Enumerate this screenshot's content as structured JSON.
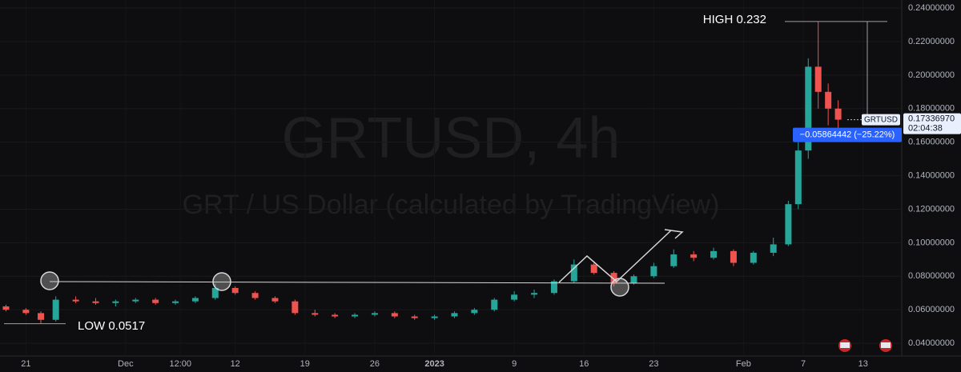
{
  "chart_data": {
    "type": "candlestick",
    "watermark": {
      "symbol": "GRTUSD, 4h",
      "description": "GRT / US Dollar (calculated by TradingView)"
    },
    "x": [
      -2,
      0,
      1.5,
      3,
      5,
      7,
      9,
      11,
      13,
      15,
      17,
      19,
      21,
      23,
      25,
      27,
      29,
      31,
      33,
      35,
      37,
      39,
      41,
      43,
      45,
      47,
      49,
      51,
      53,
      55,
      57,
      59,
      61,
      63,
      65,
      67,
      69,
      71,
      73,
      75,
      76.5,
      77.5,
      78.5,
      79.5,
      80.5,
      81.5
    ],
    "open": [
      0.062,
      0.06,
      0.058,
      0.054,
      0.066,
      0.065,
      0.064,
      0.065,
      0.066,
      0.064,
      0.065,
      0.067,
      0.073,
      0.07,
      0.067,
      0.065,
      0.058,
      0.057,
      0.056,
      0.057,
      0.058,
      0.056,
      0.055,
      0.056,
      0.058,
      0.06,
      0.066,
      0.069,
      0.07,
      0.077,
      0.087,
      0.082,
      0.076,
      0.08,
      0.086,
      0.093,
      0.091,
      0.095,
      0.088,
      0.094,
      0.099,
      0.123,
      0.155,
      0.205,
      0.19,
      0.18
    ],
    "high": [
      0.063,
      0.061,
      0.059,
      0.068,
      0.068,
      0.067,
      0.066,
      0.067,
      0.067,
      0.066,
      0.068,
      0.0755,
      0.074,
      0.071,
      0.068,
      0.066,
      0.06,
      0.058,
      0.058,
      0.059,
      0.059,
      0.057,
      0.057,
      0.059,
      0.061,
      0.067,
      0.071,
      0.072,
      0.078,
      0.09,
      0.089,
      0.083,
      0.081,
      0.088,
      0.096,
      0.095,
      0.097,
      0.096,
      0.095,
      0.103,
      0.125,
      0.16,
      0.21,
      0.232,
      0.195,
      0.185
    ],
    "low": [
      0.059,
      0.057,
      0.0517,
      0.053,
      0.064,
      0.063,
      0.062,
      0.064,
      0.063,
      0.063,
      0.064,
      0.066,
      0.069,
      0.066,
      0.064,
      0.057,
      0.056,
      0.055,
      0.055,
      0.056,
      0.055,
      0.054,
      0.054,
      0.055,
      0.057,
      0.059,
      0.065,
      0.067,
      0.069,
      0.076,
      0.081,
      0.074,
      0.075,
      0.079,
      0.085,
      0.089,
      0.09,
      0.086,
      0.087,
      0.092,
      0.098,
      0.12,
      0.15,
      0.18,
      0.17,
      0.168
    ],
    "close": [
      0.06,
      0.058,
      0.054,
      0.066,
      0.065,
      0.064,
      0.065,
      0.066,
      0.064,
      0.065,
      0.067,
      0.073,
      0.07,
      0.067,
      0.065,
      0.058,
      0.057,
      0.056,
      0.057,
      0.058,
      0.056,
      0.055,
      0.056,
      0.058,
      0.06,
      0.066,
      0.069,
      0.07,
      0.077,
      0.087,
      0.082,
      0.076,
      0.08,
      0.086,
      0.093,
      0.091,
      0.095,
      0.088,
      0.094,
      0.099,
      0.123,
      0.155,
      0.205,
      0.19,
      0.18,
      0.1734
    ],
    "up_color": "#26a69a",
    "down_color": "#ef5350",
    "xlim": [
      -2.6,
      87.8
    ],
    "xticks": [
      {
        "value": 0,
        "label": "21"
      },
      {
        "value": 10,
        "label": "Dec"
      },
      {
        "value": 15.5,
        "label": "12:00"
      },
      {
        "value": 21,
        "label": "12"
      },
      {
        "value": 28,
        "label": "19"
      },
      {
        "value": 35,
        "label": "26"
      },
      {
        "value": 41,
        "label": "2023"
      },
      {
        "value": 49,
        "label": "9"
      },
      {
        "value": 56,
        "label": "16"
      },
      {
        "value": 63,
        "label": "23"
      },
      {
        "value": 72,
        "label": "Feb"
      },
      {
        "value": 78,
        "label": "7"
      },
      {
        "value": 84,
        "label": "13"
      }
    ],
    "ylim": [
      0.0324,
      0.2448
    ],
    "yticks": [
      {
        "value": 0.04,
        "label": "0.04000000"
      },
      {
        "value": 0.06,
        "label": "0.06000000"
      },
      {
        "value": 0.08,
        "label": "0.08000000"
      },
      {
        "value": 0.1,
        "label": "0.10000000"
      },
      {
        "value": 0.12,
        "label": "0.12000000"
      },
      {
        "value": 0.14,
        "label": "0.14000000"
      },
      {
        "value": 0.16,
        "label": "0.16000000"
      },
      {
        "value": 0.18,
        "label": "0.18000000"
      },
      {
        "value": 0.2,
        "label": "0.20000000"
      },
      {
        "value": 0.22,
        "label": "0.22000000"
      },
      {
        "value": 0.24,
        "label": "0.24000000"
      }
    ],
    "annotations": [
      {
        "text": "HIGH 0.232",
        "value": 0.232
      },
      {
        "text": "LOW 0.0517",
        "value": 0.0517
      }
    ],
    "last_price": {
      "symbol": "GRTUSD",
      "value": 0.1733697,
      "label": "0.17336970",
      "countdown": "02:04:38"
    },
    "measure": {
      "label": "−0.05864442 (−25.22%)"
    }
  }
}
